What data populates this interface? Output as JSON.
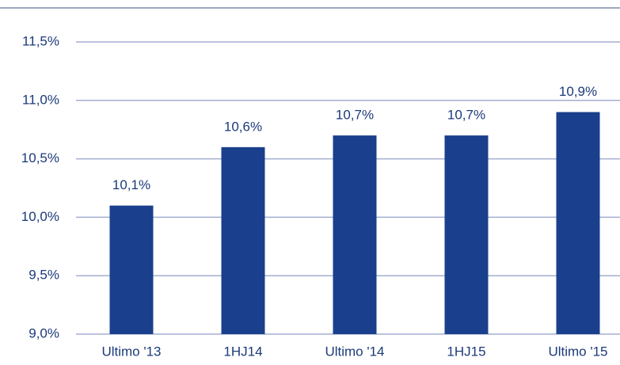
{
  "chart_data": {
    "type": "bar",
    "categories": [
      "Ultimo '13",
      "1HJ14",
      "Ultimo '14",
      "1HJ15",
      "Ultimo '15"
    ],
    "values": [
      10.1,
      10.6,
      10.7,
      10.7,
      10.9
    ],
    "value_labels": [
      "10,1%",
      "10,6%",
      "10,7%",
      "10,7%",
      "10,9%"
    ],
    "color": "#1a3f8c",
    "ylim": [
      9.0,
      11.5
    ],
    "yticks": [
      {
        "value": 9.0,
        "label": "9,0%"
      },
      {
        "value": 9.5,
        "label": "9,5%"
      },
      {
        "value": 10.0,
        "label": "10,0%"
      },
      {
        "value": 10.5,
        "label": "10,5%"
      },
      {
        "value": 11.0,
        "label": "11,0%"
      },
      {
        "value": 11.5,
        "label": "11,5%"
      }
    ],
    "grid": true
  }
}
